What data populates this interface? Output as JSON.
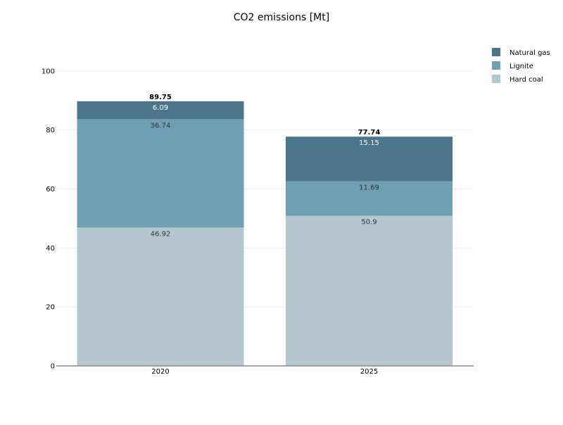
{
  "chart_data": {
    "type": "bar",
    "stacked": true,
    "title": "CO2 emissions [Mt]",
    "xlabel": "",
    "ylabel": "",
    "categories": [
      "2020",
      "2025"
    ],
    "ylim": [
      0,
      110
    ],
    "yticks": [
      0,
      20,
      40,
      60,
      80,
      100
    ],
    "grid": true,
    "legend_position": "top-right",
    "series": [
      {
        "name": "Hard coal",
        "color": "#b5c6ce",
        "label_color": "#333333",
        "values": [
          46.92,
          50.9
        ]
      },
      {
        "name": "Lignite",
        "color": "#6f9fb5",
        "label_color": "#333333",
        "values": [
          36.74,
          11.69
        ]
      },
      {
        "name": "Natural gas",
        "color": "#4b7589",
        "label_color": "#ffffff",
        "values": [
          6.09,
          15.15
        ]
      }
    ],
    "totals": [
      89.75,
      77.74
    ]
  }
}
